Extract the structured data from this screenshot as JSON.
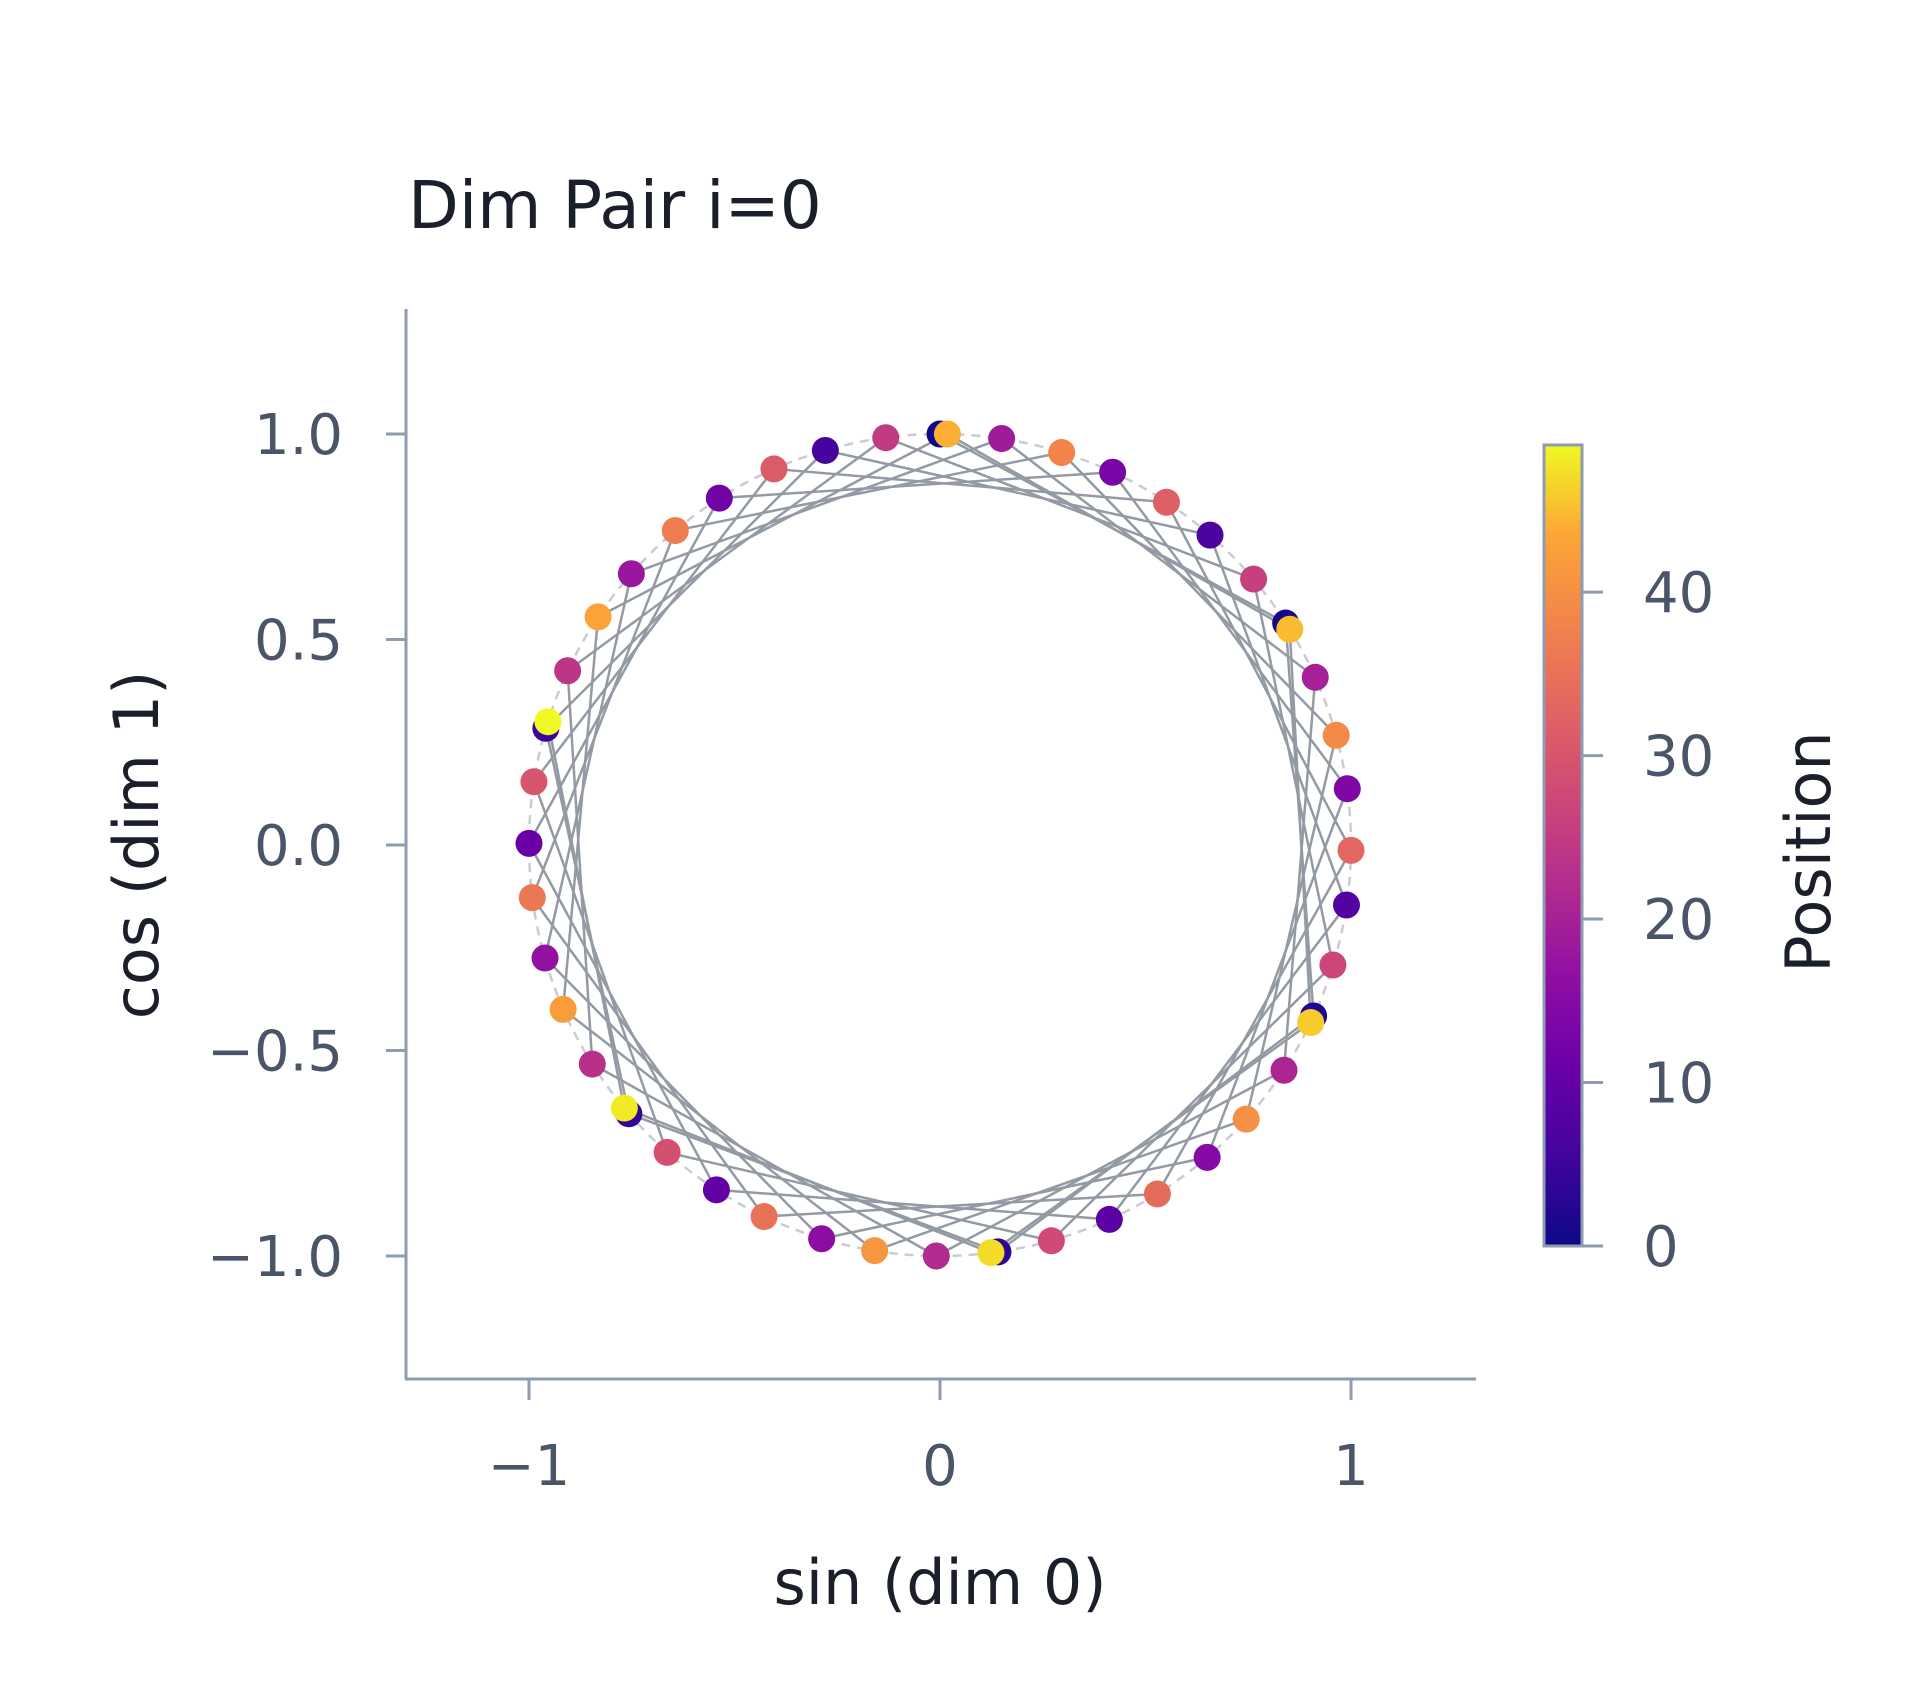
{
  "chart_data": {
    "type": "scatter",
    "title": "Dim Pair i=0",
    "xlabel": "sin (dim 0)",
    "ylabel": "cos (dim 1)",
    "xlim": [
      -1.3,
      1.3
    ],
    "ylim": [
      -1.3,
      1.3
    ],
    "xticks": [
      -1,
      0,
      1
    ],
    "xtick_labels": [
      "−1",
      "0",
      "1"
    ],
    "yticks": [
      1.0,
      0.5,
      0.0,
      -0.5,
      -1.0
    ],
    "ytick_labels": [
      "1.0",
      "0.5",
      "0.0",
      "−0.5",
      "−1.0"
    ],
    "grid": false,
    "colorbar": {
      "label": "Position",
      "colormap": "plasma",
      "range": [
        0,
        49
      ],
      "ticks": [
        0,
        10,
        20,
        30,
        40
      ],
      "tick_labels": [
        "0",
        "10",
        "20",
        "30",
        "40"
      ]
    },
    "series": [
      {
        "x": [
          0.0,
          0.841,
          0.909,
          0.141,
          -0.757,
          -0.959,
          -0.279,
          0.657,
          0.989,
          0.412,
          -0.544,
          -1.0,
          -0.537,
          0.42,
          0.991,
          0.65,
          -0.288,
          -0.961,
          -0.751,
          0.15,
          0.913,
          0.837,
          -0.009,
          -0.846,
          -0.906,
          -0.132,
          0.763,
          0.956,
          0.271,
          -0.664,
          -0.988,
          -0.404,
          0.551,
          1.0,
          0.529,
          -0.428,
          -0.992,
          -0.644,
          0.296,
          0.964,
          0.745,
          -0.159,
          -0.917,
          -0.832,
          0.018,
          0.851,
          0.902,
          0.124,
          -0.768,
          -0.954
        ],
        "y": [
          1.0,
          0.54,
          -0.416,
          -0.99,
          -0.654,
          0.284,
          0.96,
          0.754,
          -0.146,
          -0.911,
          -0.839,
          0.004,
          0.844,
          0.907,
          0.137,
          -0.76,
          -0.958,
          -0.275,
          0.66,
          0.989,
          0.408,
          -0.548,
          -1.0,
          -0.533,
          0.424,
          0.991,
          0.647,
          -0.292,
          -0.963,
          -0.748,
          0.154,
          0.915,
          0.834,
          -0.013,
          -0.849,
          -0.904,
          -0.128,
          0.765,
          0.955,
          0.267,
          -0.667,
          -0.987,
          -0.4,
          0.555,
          1.0,
          0.525,
          -0.432,
          -0.992,
          -0.64,
          0.3
        ],
        "color_values": [
          0,
          1,
          2,
          3,
          4,
          5,
          6,
          7,
          8,
          9,
          10,
          11,
          12,
          13,
          14,
          15,
          16,
          17,
          18,
          19,
          20,
          21,
          22,
          23,
          24,
          25,
          26,
          27,
          28,
          29,
          30,
          31,
          32,
          33,
          34,
          35,
          36,
          37,
          38,
          39,
          40,
          41,
          42,
          43,
          44,
          45,
          46,
          47,
          48,
          49
        ]
      }
    ],
    "reference_circle": "dashed unit circle",
    "connecting_lines": "consecutive positions joined by grey lines"
  }
}
